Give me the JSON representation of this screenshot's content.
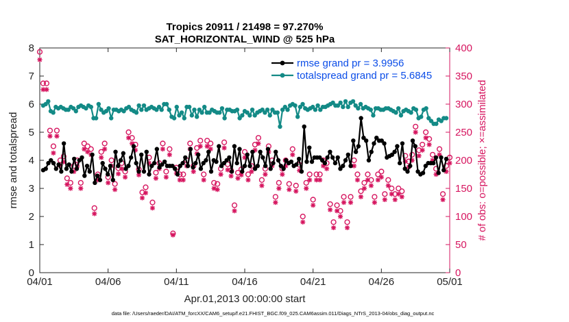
{
  "chart_data": {
    "type": "line",
    "title": "Tropics 20911 / 21498 = 97.270%",
    "subtitle": "SAT_HORIZONTAL_WIND @ 525 hPa",
    "xlabel": "Apr.01,2013 00:00:00 start",
    "ylabel": "rmse and totalspread",
    "y2label": "# of obs: o=possible; ×=assimilated",
    "xlim": [
      0,
      30
    ],
    "ylim": [
      0,
      8
    ],
    "y2lim": [
      0,
      400
    ],
    "x_ticks": [
      0,
      5,
      10,
      15,
      20,
      25,
      30
    ],
    "x_tick_labels": [
      "04/01",
      "04/06",
      "04/11",
      "04/16",
      "04/21",
      "04/26",
      "05/01"
    ],
    "y_ticks": [
      0,
      1,
      2,
      3,
      4,
      5,
      6,
      7,
      8
    ],
    "y_tick_labels": [
      "0",
      "1",
      "2",
      "3",
      "4",
      "5",
      "6",
      "7",
      "8"
    ],
    "y2_ticks": [
      0,
      50,
      100,
      150,
      200,
      250,
      300,
      350,
      400
    ],
    "y2_tick_labels": [
      "0",
      "50",
      "100",
      "150",
      "200",
      "250",
      "300",
      "350",
      "400"
    ],
    "footer": "data file: /Users/raeder/DAI/ATM_forcXX/CAM6_setup/f.e21.FHIST_BGC.f09_025.CAM6assim.011/Diags_NTrS_2013-04/obs_diag_output.nc",
    "legend_position": "top-right",
    "colors": {
      "rmse": "#000000",
      "totalspread": "#138a86",
      "obs": "#d6155f",
      "legend_text": "#0b4de8",
      "right_axis": "#d6155f"
    },
    "series": [
      {
        "name": "rmse grand pr = 3.9956",
        "axis": "left",
        "color": "#000000",
        "values": [
          3.65,
          3.7,
          3.9,
          4.0,
          3.9,
          3.7,
          3.85,
          3.6,
          4.6,
          3.7,
          3.85,
          3.6,
          4.05,
          3.7,
          4.0,
          4.1,
          3.45,
          3.8,
          3.6,
          4.2,
          3.2,
          3.45,
          3.3,
          3.9,
          3.7,
          3.5,
          3.8,
          3.3,
          4.3,
          3.8,
          4.0,
          4.25,
          3.7,
          3.8,
          4.1,
          4.5,
          3.9,
          3.6,
          4.2,
          3.6,
          4.3,
          3.5,
          3.8,
          3.9,
          4.4,
          3.75,
          3.85,
          3.95,
          3.8,
          3.8,
          3.8,
          3.7,
          3.5,
          3.8,
          3.9,
          4.1,
          3.8,
          4.4,
          3.75,
          3.9,
          4.2,
          3.7,
          3.9,
          4.0,
          4.3,
          3.6,
          4.0,
          3.95,
          4.5,
          3.8,
          3.9,
          4.0,
          4.1,
          3.6,
          4.5,
          3.9,
          4.4,
          3.6,
          3.8,
          4.2,
          3.8,
          4.3,
          3.7,
          3.8,
          4.3,
          4.1,
          3.8,
          4.4,
          3.7,
          3.9,
          4.3,
          4.0,
          3.8,
          3.7,
          4.0,
          3.9,
          3.95,
          3.8,
          3.85,
          4.05,
          3.6,
          5.2,
          3.95,
          4.45,
          3.95,
          4.1,
          4.1,
          4.1,
          4.0,
          3.9,
          4.1,
          4.3,
          4.1,
          3.9,
          4.1,
          3.7,
          3.8,
          4.0,
          4.2,
          3.8,
          4.7,
          4.3,
          4.5,
          5.5,
          4.8,
          4.7,
          4.0,
          4.3,
          4.6,
          4.8,
          4.7,
          4.7,
          4.6,
          4.1,
          4.15,
          4.2,
          4.3,
          4.5,
          3.9,
          4.6,
          3.7,
          3.6,
          3.8,
          4.7,
          4.5,
          3.6,
          3.5,
          3.55,
          3.8,
          3.9,
          3.9,
          3.9,
          4.1,
          3.55,
          4.1,
          3.65,
          4.05
        ]
      },
      {
        "name": "totalspread grand pr = 5.6845",
        "axis": "left",
        "color": "#138a86",
        "values": [
          5.95,
          6.0,
          6.1,
          5.75,
          5.7,
          5.9,
          5.85,
          5.9,
          5.85,
          5.8,
          5.8,
          5.9,
          5.85,
          5.75,
          5.9,
          5.95,
          5.9,
          5.85,
          5.95,
          5.9,
          5.5,
          5.5,
          6.0,
          5.8,
          5.7,
          5.75,
          5.85,
          5.5,
          5.8,
          5.8,
          5.75,
          5.8,
          5.75,
          5.85,
          5.9,
          5.8,
          5.75,
          5.7,
          5.95,
          5.8,
          5.95,
          5.8,
          5.85,
          5.9,
          5.85,
          5.8,
          5.9,
          5.8,
          6.0,
          6.0,
          5.8,
          5.55,
          5.5,
          5.9,
          5.6,
          5.7,
          5.5,
          5.9,
          5.9,
          5.6,
          5.8,
          5.55,
          5.8,
          5.7,
          5.9,
          5.7,
          5.7,
          5.8,
          5.75,
          5.7,
          5.7,
          5.85,
          5.5,
          5.8,
          5.8,
          5.75,
          5.75,
          5.8,
          5.5,
          5.6,
          5.75,
          5.7,
          5.6,
          5.8,
          5.6,
          5.7,
          5.75,
          5.8,
          5.7,
          5.8,
          5.6,
          5.8,
          5.7,
          5.7,
          5.2,
          5.8,
          5.9,
          5.8,
          5.95,
          6.0,
          5.95,
          5.55,
          5.9,
          6.0,
          5.85,
          5.8,
          5.85,
          5.9,
          5.8,
          5.95,
          5.8,
          5.9,
          5.9,
          5.95,
          6.0,
          6.05,
          5.95,
          5.95,
          6.05,
          5.9,
          6.1,
          5.9,
          6.05,
          6.1,
          5.95,
          5.85,
          6.0,
          5.85,
          5.9,
          5.85,
          5.8,
          5.6,
          5.85,
          5.85,
          5.8,
          5.8,
          5.85,
          5.85,
          5.8,
          5.75,
          5.7,
          5.85,
          5.6,
          5.75,
          5.8,
          5.75,
          5.7,
          5.85,
          5.8,
          5.5,
          5.55,
          5.8,
          5.85,
          5.5,
          5.4,
          5.3,
          5.3,
          5.45,
          5.4,
          5.5,
          5.5
        ]
      }
    ],
    "obs_possible": [
      [
        0.0,
        393
      ],
      [
        0.25,
        337
      ],
      [
        0.5,
        337
      ],
      [
        0.75,
        253
      ],
      [
        1.0,
        225
      ],
      [
        1.25,
        253
      ],
      [
        1.5,
        200
      ],
      [
        1.75,
        207
      ],
      [
        2.0,
        168
      ],
      [
        2.25,
        160
      ],
      [
        2.5,
        190
      ],
      [
        2.75,
        200
      ],
      [
        3.0,
        160
      ],
      [
        3.25,
        230
      ],
      [
        3.5,
        225
      ],
      [
        3.75,
        220
      ],
      [
        4.0,
        115
      ],
      [
        4.25,
        175
      ],
      [
        4.5,
        215
      ],
      [
        4.75,
        230
      ],
      [
        5.0,
        170
      ],
      [
        5.25,
        200
      ],
      [
        5.5,
        158
      ],
      [
        5.75,
        186
      ],
      [
        6.0,
        195
      ],
      [
        6.25,
        180
      ],
      [
        6.5,
        250
      ],
      [
        6.75,
        240
      ],
      [
        7.0,
        228
      ],
      [
        7.25,
        184
      ],
      [
        7.5,
        143
      ],
      [
        7.75,
        152
      ],
      [
        8.0,
        205
      ],
      [
        8.25,
        125
      ],
      [
        8.5,
        178
      ],
      [
        8.75,
        195
      ],
      [
        9.0,
        230
      ],
      [
        9.25,
        180
      ],
      [
        9.5,
        220
      ],
      [
        9.75,
        70
      ],
      [
        10.0,
        187
      ],
      [
        10.25,
        175
      ],
      [
        10.5,
        175
      ],
      [
        10.75,
        200
      ],
      [
        11.0,
        230
      ],
      [
        11.25,
        190
      ],
      [
        11.5,
        222
      ],
      [
        11.75,
        235
      ],
      [
        12.0,
        175
      ],
      [
        12.25,
        235
      ],
      [
        12.5,
        230
      ],
      [
        12.75,
        160
      ],
      [
        13.0,
        158
      ],
      [
        13.25,
        185
      ],
      [
        13.5,
        232
      ],
      [
        13.75,
        193
      ],
      [
        14.0,
        182
      ],
      [
        14.25,
        120
      ],
      [
        14.5,
        178
      ],
      [
        14.75,
        184
      ],
      [
        15.0,
        215
      ],
      [
        15.25,
        175
      ],
      [
        15.5,
        190
      ],
      [
        15.75,
        228
      ],
      [
        16.0,
        240
      ],
      [
        16.25,
        165
      ],
      [
        16.5,
        185
      ],
      [
        16.75,
        225
      ],
      [
        17.0,
        200
      ],
      [
        17.25,
        135
      ],
      [
        17.5,
        160
      ],
      [
        17.75,
        185
      ],
      [
        18.0,
        200
      ],
      [
        18.25,
        158
      ],
      [
        18.5,
        220
      ],
      [
        18.75,
        155
      ],
      [
        19.0,
        192
      ],
      [
        19.25,
        100
      ],
      [
        19.5,
        160
      ],
      [
        19.75,
        175
      ],
      [
        20.0,
        130
      ],
      [
        20.25,
        175
      ],
      [
        20.5,
        175
      ],
      [
        20.75,
        200
      ],
      [
        21.0,
        195
      ],
      [
        21.25,
        122
      ],
      [
        21.5,
        90
      ],
      [
        21.75,
        120
      ],
      [
        22.0,
        110
      ],
      [
        22.25,
        135
      ],
      [
        22.5,
        90
      ],
      [
        22.75,
        135
      ],
      [
        23.0,
        200
      ],
      [
        23.25,
        175
      ],
      [
        23.5,
        145
      ],
      [
        23.75,
        160
      ],
      [
        24.0,
        175
      ],
      [
        24.25,
        165
      ],
      [
        24.5,
        135
      ],
      [
        24.75,
        175
      ],
      [
        25.0,
        180
      ],
      [
        25.25,
        140
      ],
      [
        25.5,
        165
      ],
      [
        25.75,
        150
      ],
      [
        26.0,
        140
      ],
      [
        26.25,
        150
      ],
      [
        26.5,
        145
      ],
      [
        26.75,
        208
      ],
      [
        27.0,
        198
      ],
      [
        27.25,
        210
      ],
      [
        27.5,
        260
      ],
      [
        27.75,
        218
      ],
      [
        28.0,
        228
      ],
      [
        28.25,
        250
      ],
      [
        28.5,
        238
      ],
      [
        28.75,
        210
      ],
      [
        29.0,
        185
      ],
      [
        29.25,
        220
      ],
      [
        29.5,
        140
      ],
      [
        29.75,
        190
      ],
      [
        30.0,
        205
      ]
    ],
    "obs_assimilated": [
      [
        0.0,
        379
      ],
      [
        0.25,
        326
      ],
      [
        0.5,
        326
      ],
      [
        0.75,
        243
      ],
      [
        1.0,
        213
      ],
      [
        1.25,
        243
      ],
      [
        1.5,
        191
      ],
      [
        1.75,
        197
      ],
      [
        2.0,
        157
      ],
      [
        2.25,
        150
      ],
      [
        2.5,
        180
      ],
      [
        2.75,
        190
      ],
      [
        3.0,
        150
      ],
      [
        3.25,
        220
      ],
      [
        3.5,
        215
      ],
      [
        3.75,
        210
      ],
      [
        4.0,
        105
      ],
      [
        4.25,
        165
      ],
      [
        4.5,
        205
      ],
      [
        4.75,
        220
      ],
      [
        5.0,
        160
      ],
      [
        5.25,
        190
      ],
      [
        5.5,
        148
      ],
      [
        5.75,
        176
      ],
      [
        6.0,
        185
      ],
      [
        6.25,
        170
      ],
      [
        6.5,
        240
      ],
      [
        6.75,
        230
      ],
      [
        7.0,
        218
      ],
      [
        7.25,
        174
      ],
      [
        7.5,
        133
      ],
      [
        7.75,
        142
      ],
      [
        8.0,
        195
      ],
      [
        8.25,
        115
      ],
      [
        8.5,
        168
      ],
      [
        8.75,
        185
      ],
      [
        9.0,
        220
      ],
      [
        9.25,
        170
      ],
      [
        9.5,
        210
      ],
      [
        9.75,
        67
      ],
      [
        10.0,
        177
      ],
      [
        10.25,
        165
      ],
      [
        10.5,
        165
      ],
      [
        10.75,
        190
      ],
      [
        11.0,
        220
      ],
      [
        11.25,
        180
      ],
      [
        11.5,
        212
      ],
      [
        11.75,
        225
      ],
      [
        12.0,
        165
      ],
      [
        12.25,
        225
      ],
      [
        12.5,
        220
      ],
      [
        12.75,
        150
      ],
      [
        13.0,
        148
      ],
      [
        13.25,
        175
      ],
      [
        13.5,
        222
      ],
      [
        13.75,
        183
      ],
      [
        14.0,
        172
      ],
      [
        14.25,
        110
      ],
      [
        14.5,
        168
      ],
      [
        14.75,
        174
      ],
      [
        15.0,
        205
      ],
      [
        15.25,
        165
      ],
      [
        15.5,
        180
      ],
      [
        15.75,
        218
      ],
      [
        16.0,
        230
      ],
      [
        16.25,
        155
      ],
      [
        16.5,
        175
      ],
      [
        16.75,
        215
      ],
      [
        17.0,
        190
      ],
      [
        17.25,
        125
      ],
      [
        17.5,
        150
      ],
      [
        17.75,
        175
      ],
      [
        18.0,
        190
      ],
      [
        18.25,
        148
      ],
      [
        18.5,
        210
      ],
      [
        18.75,
        145
      ],
      [
        19.0,
        182
      ],
      [
        19.25,
        90
      ],
      [
        19.5,
        150
      ],
      [
        19.75,
        165
      ],
      [
        20.0,
        120
      ],
      [
        20.25,
        165
      ],
      [
        20.5,
        165
      ],
      [
        20.75,
        190
      ],
      [
        21.0,
        185
      ],
      [
        21.25,
        112
      ],
      [
        21.5,
        80
      ],
      [
        21.75,
        110
      ],
      [
        22.0,
        100
      ],
      [
        22.25,
        125
      ],
      [
        22.5,
        80
      ],
      [
        22.75,
        125
      ],
      [
        23.0,
        190
      ],
      [
        23.25,
        165
      ],
      [
        23.5,
        135
      ],
      [
        23.75,
        150
      ],
      [
        24.0,
        165
      ],
      [
        24.25,
        155
      ],
      [
        24.5,
        125
      ],
      [
        24.75,
        165
      ],
      [
        25.0,
        170
      ],
      [
        25.25,
        130
      ],
      [
        25.5,
        155
      ],
      [
        25.75,
        140
      ],
      [
        26.0,
        130
      ],
      [
        26.25,
        140
      ],
      [
        26.5,
        135
      ],
      [
        26.75,
        198
      ],
      [
        27.0,
        188
      ],
      [
        27.25,
        200
      ],
      [
        27.5,
        250
      ],
      [
        27.75,
        208
      ],
      [
        28.0,
        218
      ],
      [
        28.25,
        240
      ],
      [
        28.5,
        228
      ],
      [
        28.75,
        200
      ],
      [
        29.0,
        175
      ],
      [
        29.25,
        210
      ],
      [
        29.5,
        130
      ],
      [
        29.75,
        180
      ],
      [
        30.0,
        195
      ]
    ]
  }
}
